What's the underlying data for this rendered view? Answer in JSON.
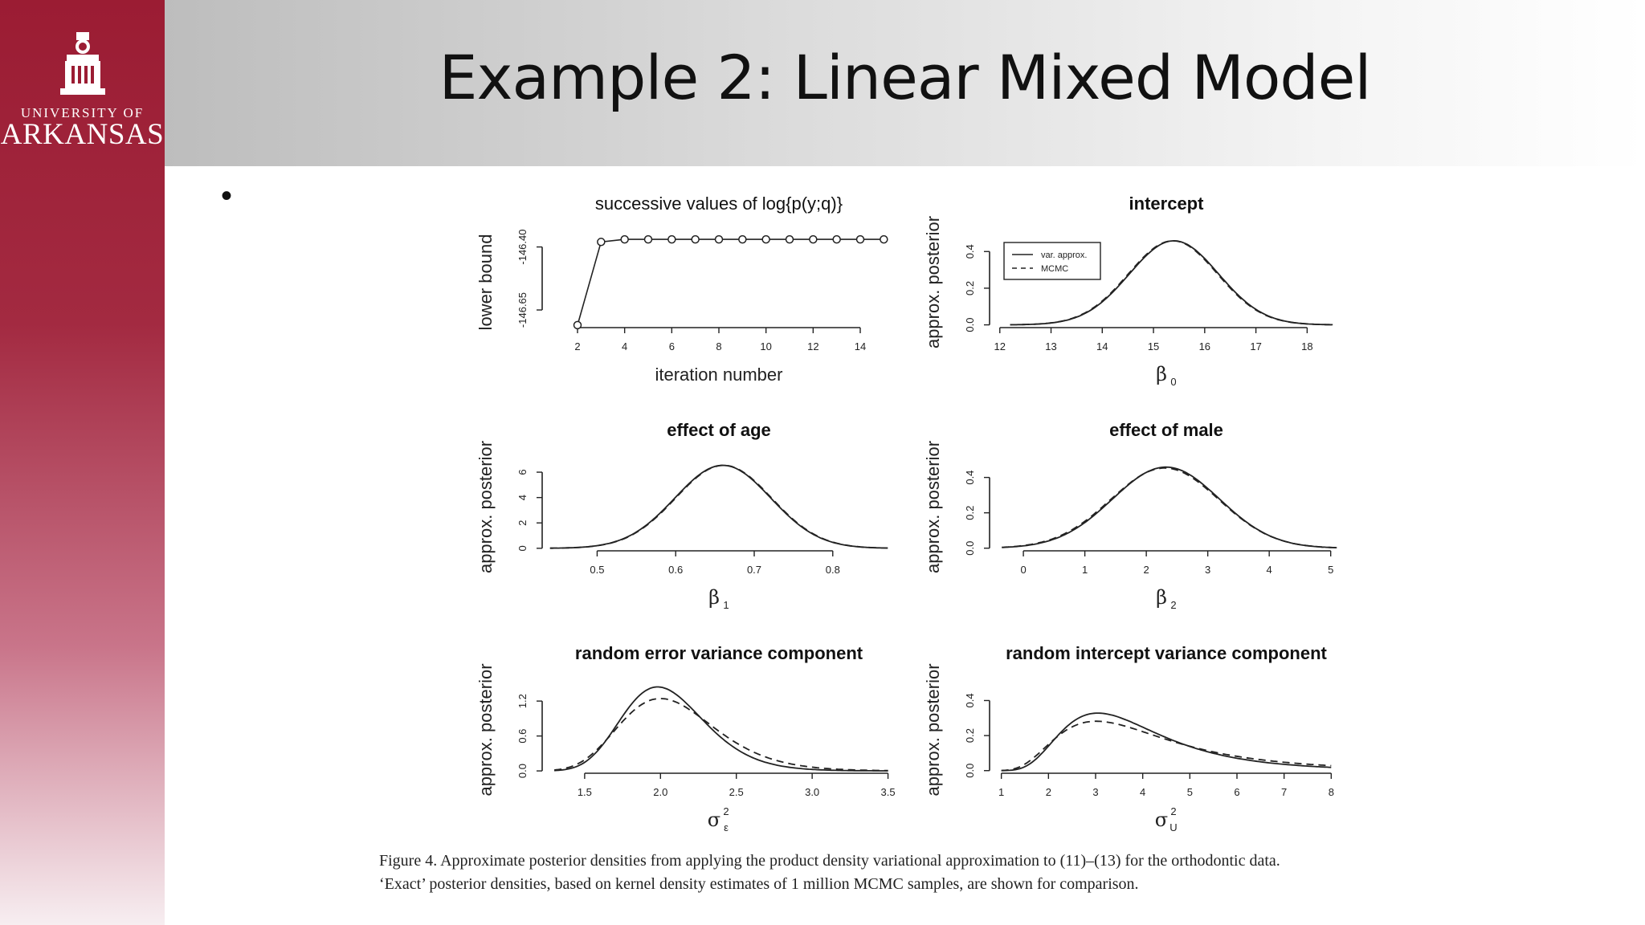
{
  "slide": {
    "title": "Example 2: Linear Mixed Model",
    "bullet": "•",
    "logo": {
      "line1": "UNIVERSITY OF",
      "line2": "ARKANSAS"
    },
    "caption": {
      "line1": "Figure 4.   Approximate posterior densities from applying the product density variational approximation to (11)–(13) for the orthodontic data.",
      "line2": "‘Exact’ posterior densities, based on kernel density estimates of 1 million MCMC samples, are shown for comparison."
    }
  },
  "chart_data": [
    {
      "type": "line",
      "title": "successive values of log{p(y;q)}",
      "xlabel": "iteration number",
      "ylabel": "lower bound",
      "xticks": [
        "2",
        "4",
        "6",
        "8",
        "10",
        "12",
        "14"
      ],
      "xtick_values": [
        2,
        4,
        6,
        8,
        10,
        12,
        14
      ],
      "yticks": [
        "-146.65",
        "-146.40"
      ],
      "ytick_values": [
        -146.65,
        -146.4
      ],
      "xlim": [
        0.5,
        15.5
      ],
      "ylim": [
        -146.72,
        -146.36
      ],
      "markers": "circle",
      "series": [
        {
          "x": [
            2,
            3,
            4,
            5,
            6,
            7,
            8,
            9,
            10,
            11,
            12,
            13,
            14,
            15
          ],
          "y": [
            -146.71,
            -146.38,
            -146.37,
            -146.37,
            -146.37,
            -146.37,
            -146.37,
            -146.37,
            -146.37,
            -146.37,
            -146.37,
            -146.37,
            -146.37,
            -146.37
          ]
        }
      ]
    },
    {
      "type": "line",
      "title": "intercept",
      "xlabel": "β",
      "xlabel_sub": "0",
      "ylabel": "approx. posterior",
      "xticks": [
        "12",
        "13",
        "14",
        "15",
        "16",
        "17",
        "18"
      ],
      "xtick_values": [
        12,
        13,
        14,
        15,
        16,
        17,
        18
      ],
      "yticks": [
        "0.0",
        "0.2",
        "0.4"
      ],
      "ytick_values": [
        0,
        0.2,
        0.4
      ],
      "xlim": [
        11.8,
        18.7
      ],
      "ylim": [
        -0.015,
        0.48
      ],
      "legend": {
        "position": "top-left",
        "entries": [
          "var. approx.",
          "MCMC"
        ]
      },
      "series": [
        {
          "name": "var. approx.",
          "dist": "normal",
          "mean": 15.4,
          "sd": 0.87,
          "xrange": [
            12.2,
            18.5
          ],
          "style": "solid"
        },
        {
          "name": "MCMC",
          "dist": "normal",
          "mean": 15.38,
          "sd": 0.87,
          "xrange": [
            12.2,
            18.5
          ],
          "style": "dashed"
        }
      ]
    },
    {
      "type": "line",
      "title": "effect of age",
      "xlabel": "β",
      "xlabel_sub": "1",
      "ylabel": "approx. posterior",
      "xticks": [
        "0.5",
        "0.6",
        "0.7",
        "0.8"
      ],
      "xtick_values": [
        0.5,
        0.6,
        0.7,
        0.8
      ],
      "yticks": [
        "0",
        "2",
        "4",
        "6"
      ],
      "ytick_values": [
        0,
        2,
        4,
        6
      ],
      "xlim": [
        0.43,
        0.88
      ],
      "ylim": [
        -0.2,
        6.7
      ],
      "series": [
        {
          "dist": "normal",
          "mean": 0.66,
          "sd": 0.061,
          "xrange": [
            0.44,
            0.87
          ],
          "style": "solid"
        },
        {
          "dist": "normal",
          "mean": 0.661,
          "sd": 0.061,
          "xrange": [
            0.44,
            0.87
          ],
          "style": "dashed"
        }
      ]
    },
    {
      "type": "line",
      "title": "effect of male",
      "xlabel": "β",
      "xlabel_sub": "2",
      "ylabel": "approx. posterior",
      "xticks": [
        "0",
        "1",
        "2",
        "3",
        "4",
        "5"
      ],
      "xtick_values": [
        0,
        1,
        2,
        3,
        4,
        5
      ],
      "yticks": [
        "0.0",
        "0.2",
        "0.4"
      ],
      "ytick_values": [
        0,
        0.2,
        0.4
      ],
      "xlim": [
        -0.55,
        5.2
      ],
      "ylim": [
        -0.015,
        0.48
      ],
      "series": [
        {
          "dist": "normal",
          "mean": 2.32,
          "sd": 0.87,
          "xrange": [
            -0.35,
            5.1
          ],
          "style": "solid"
        },
        {
          "dist": "normal",
          "mean": 2.3,
          "sd": 0.88,
          "xrange": [
            -0.35,
            5.1
          ],
          "style": "dashed"
        }
      ]
    },
    {
      "type": "line",
      "title": "random error variance component",
      "xlabel": "σ",
      "xlabel_sup": "2",
      "xlabel_sub": "ε",
      "ylabel": "approx. posterior",
      "xticks": [
        "1.5",
        "2.0",
        "2.5",
        "3.0",
        "3.5"
      ],
      "xtick_values": [
        1.5,
        2.0,
        2.5,
        3.0,
        3.5
      ],
      "yticks": [
        "0.0",
        "0.6",
        "1.2"
      ],
      "ytick_values": [
        0,
        0.6,
        1.2
      ],
      "xlim": [
        1.22,
        3.55
      ],
      "ylim": [
        -0.04,
        1.45
      ],
      "series": [
        {
          "dist": "invgamma",
          "shape": 52.5,
          "scale": 106,
          "xrange": [
            1.3,
            3.5
          ],
          "style": "solid"
        },
        {
          "dist": "invgamma",
          "shape": 40,
          "scale": 82,
          "xrange": [
            1.3,
            3.5
          ],
          "style": "dashed"
        }
      ]
    },
    {
      "type": "line",
      "title": "random intercept variance component",
      "xlabel": "σ",
      "xlabel_sup": "2",
      "xlabel_sub": "U",
      "ylabel": "approx. posterior",
      "xticks": [
        "1",
        "2",
        "3",
        "4",
        "5",
        "6",
        "7",
        "8"
      ],
      "xtick_values": [
        1,
        2,
        3,
        4,
        5,
        6,
        7,
        8
      ],
      "yticks": [
        "0.0",
        "0.2",
        "0.4"
      ],
      "ytick_values": [
        0,
        0.2,
        0.4
      ],
      "xlim": [
        0.75,
        8.25
      ],
      "ylim": [
        -0.015,
        0.48
      ],
      "series": [
        {
          "dist": "invgamma",
          "shape": 7.3,
          "scale": 25.3,
          "xrange": [
            1.0,
            8.0
          ],
          "style": "solid"
        },
        {
          "dist": "invgamma",
          "shape": 5.5,
          "scale": 19.6,
          "xrange": [
            1.0,
            8.0
          ],
          "style": "dashed"
        }
      ]
    }
  ]
}
